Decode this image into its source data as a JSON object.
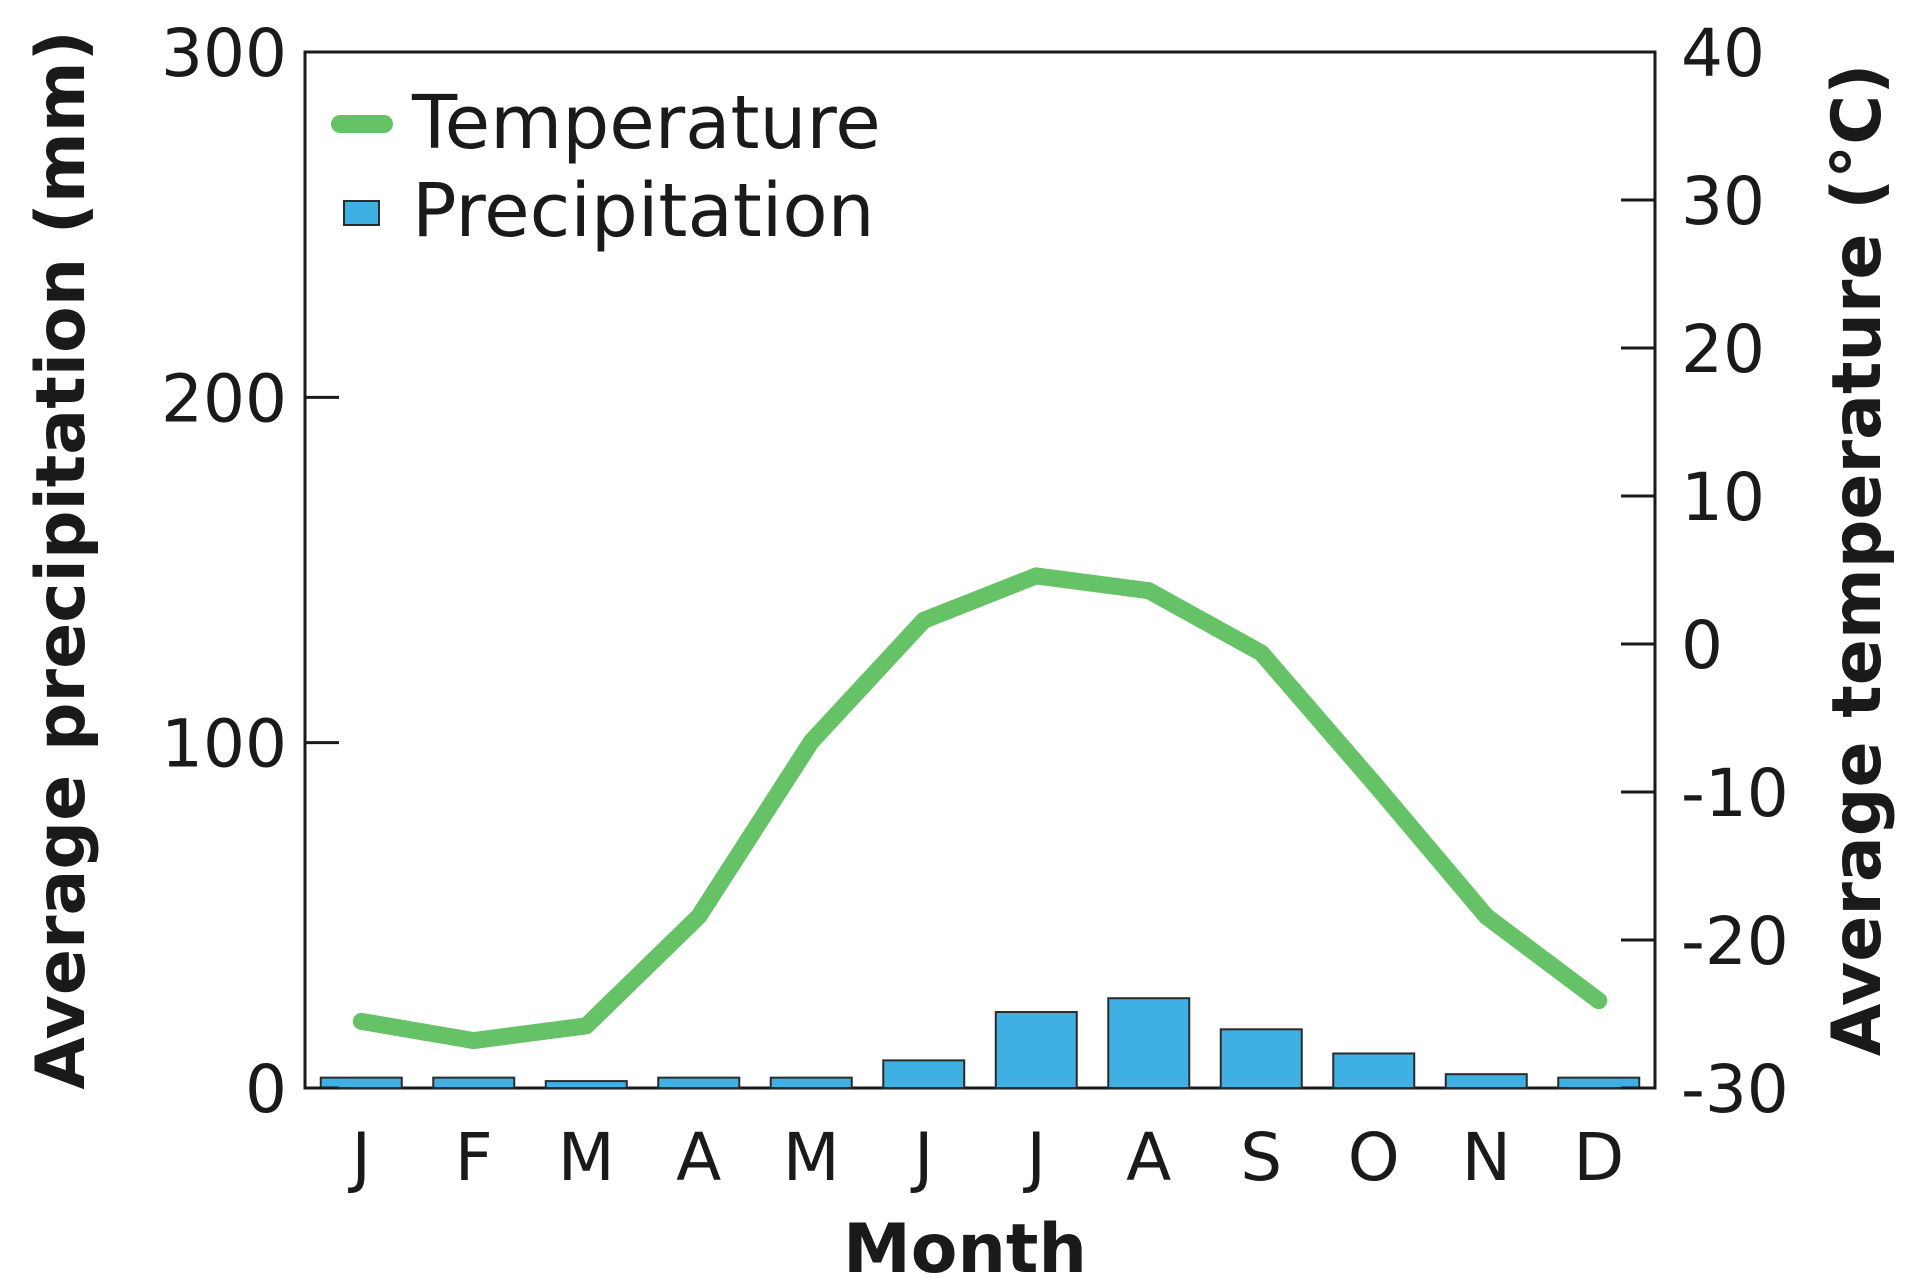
{
  "chart_data": {
    "type": "bar",
    "categories": [
      "J",
      "F",
      "M",
      "A",
      "M",
      "J",
      "J",
      "A",
      "S",
      "O",
      "N",
      "D"
    ],
    "xlabel": "Month",
    "ylabel_left": "Average precipitation (mm)",
    "ylabel_right": "Average temperature (°C)",
    "ylim_left": [
      0,
      300
    ],
    "ylim_right": [
      -30,
      40
    ],
    "yticks_left": [
      0,
      100,
      200,
      300
    ],
    "yticks_right": [
      -30,
      -20,
      -10,
      0,
      10,
      20,
      30,
      40
    ],
    "grid": false,
    "legend_position": "top-left",
    "series": [
      {
        "name": "Temperature",
        "type": "line",
        "axis": "right",
        "color": "#66c266",
        "values": [
          -25.5,
          -26.8,
          -25.8,
          -18.4,
          -6.6,
          1.6,
          4.6,
          3.6,
          -0.6,
          -9.4,
          -18.4,
          -24.1
        ]
      },
      {
        "name": "Precipitation",
        "type": "bar",
        "axis": "left",
        "color": "#3fb0e3",
        "values": [
          3,
          3,
          2,
          3,
          3,
          8,
          22,
          26,
          17,
          10,
          4,
          3
        ]
      }
    ]
  }
}
